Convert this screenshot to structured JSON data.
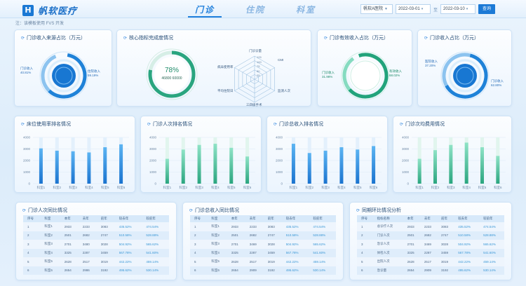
{
  "header": {
    "logo_mark": "H",
    "logo_text": "帆软医疗",
    "tabs": [
      {
        "label": "门诊",
        "active": true
      },
      {
        "label": "住院",
        "active": false
      },
      {
        "label": "科室",
        "active": false
      }
    ],
    "filters": {
      "org": "帆软A医院",
      "date_start": "2022-03-01",
      "date_end": "2022-03-10",
      "separator": "至",
      "query_label": "查询"
    }
  },
  "note": "注：该模板使用 FVS 开发",
  "row1": {
    "source": {
      "title": "门诊收入来源占比（万元）",
      "left_label": "门诊收入",
      "left_value": "40.81%",
      "right_label": "住院收入",
      "right_value": "59.19%"
    },
    "core": {
      "title": "核心指标完成度情况",
      "percent": "78%",
      "subtitle": "46800 60000",
      "radar_axes": [
        "门诊诊量",
        "CMI",
        "监测人次",
        "三四级手术",
        "平均住院日",
        "病床使用率"
      ],
      "radar_ticks": [
        "125",
        "100",
        "75",
        "50",
        "25"
      ]
    },
    "effective": {
      "title": "门诊有效收入占比（万元）",
      "left_label": "门诊收入",
      "left_value": "31.98%",
      "right_label": "有效收入",
      "right_value": "68.02%"
    },
    "share": {
      "title": "门诊收入占比（万元）",
      "left_label": "医院收入",
      "left_value": "37.20%",
      "right_label": "门诊收入",
      "right_value": "62.80%"
    }
  },
  "chart_data": [
    {
      "type": "bar",
      "title": "床位使用率排名情况",
      "categories": [
        "科室1",
        "科室2",
        "科室3",
        "科室4",
        "科室5",
        "科室6"
      ],
      "values": [
        3050,
        2850,
        2800,
        2700,
        3150,
        3400
      ],
      "ylim": [
        0,
        4000
      ],
      "yticks": [
        "4000",
        "3000",
        "2000",
        "1000",
        "0"
      ],
      "color": "blue"
    },
    {
      "type": "bar",
      "title": "门诊人次排名情况",
      "categories": [
        "科室1",
        "科室2",
        "科室3",
        "科室4",
        "科室5",
        "科室6"
      ],
      "values": [
        2150,
        2950,
        3350,
        3450,
        3100,
        2350
      ],
      "ylim": [
        0,
        4000
      ],
      "yticks": [
        "4000",
        "3000",
        "2000",
        "1000",
        "0"
      ],
      "color": "green"
    },
    {
      "type": "bar",
      "title": "门诊总收入排名情况",
      "categories": [
        "科室1",
        "科室2",
        "科室3",
        "科室4",
        "科室5",
        "科室6"
      ],
      "values": [
        3450,
        2650,
        2850,
        3150,
        2950,
        3250
      ],
      "ylim": [
        0,
        4000
      ],
      "yticks": [
        "4000",
        "3000",
        "2000",
        "1000",
        "0"
      ],
      "color": "blue"
    },
    {
      "type": "bar",
      "title": "门诊次均费用情况",
      "categories": [
        "科室1",
        "科室2",
        "科室3",
        "科室4",
        "科室5",
        "科室6"
      ],
      "values": [
        2150,
        2900,
        3350,
        3550,
        3150,
        2400
      ],
      "ylim": [
        0,
        4000
      ],
      "yticks": [
        "4000",
        "3000",
        "2000",
        "1000",
        "0"
      ],
      "color": "green"
    }
  ],
  "tables": [
    {
      "title": "门诊人次同比情况",
      "headers": [
        "序号",
        "科室",
        "本年",
        "去年",
        "前年",
        "较去年",
        "较前年"
      ],
      "rows": [
        [
          "1",
          "科室1",
          "2933",
          "2233",
          "3083",
          "435.52%",
          "474.54%"
        ],
        [
          "2",
          "科室2",
          "2501",
          "2682",
          "2747",
          "510.58%",
          "528.88%"
        ],
        [
          "3",
          "科室3",
          "2701",
          "3480",
          "3028",
          "504.92%",
          "565.62%"
        ],
        [
          "4",
          "科室4",
          "3325",
          "2287",
          "3459",
          "567.78%",
          "541.60%"
        ],
        [
          "5",
          "科室5",
          "2628",
          "2517",
          "3019",
          "442.22%",
          "459.14%"
        ],
        [
          "6",
          "科室6",
          "2654",
          "2986",
          "3192",
          "495.62%",
          "530.14%"
        ]
      ]
    },
    {
      "title": "门诊总收入同比情况",
      "headers": [
        "序号",
        "科室",
        "本年",
        "去年",
        "前年",
        "较去年",
        "较前年"
      ],
      "rows": [
        [
          "1",
          "科室1",
          "2933",
          "2233",
          "3083",
          "435.52%",
          "474.54%"
        ],
        [
          "2",
          "科室2",
          "2501",
          "2682",
          "2747",
          "510.58%",
          "528.88%"
        ],
        [
          "3",
          "科室3",
          "2701",
          "3469",
          "3028",
          "504.92%",
          "565.62%"
        ],
        [
          "4",
          "科室4",
          "3325",
          "2287",
          "3459",
          "567.78%",
          "541.60%"
        ],
        [
          "5",
          "科室5",
          "2628",
          "2517",
          "3019",
          "442.22%",
          "459.14%"
        ],
        [
          "6",
          "科室6",
          "2654",
          "2909",
          "3192",
          "495.62%",
          "530.14%"
        ]
      ]
    },
    {
      "title": "同期环比情况分析",
      "headers": [
        "序号",
        "指标名称",
        "本年",
        "去年",
        "前年",
        "较去年",
        "较前年"
      ],
      "rows": [
        [
          "1",
          "总诊疗人次",
          "2933",
          "2233",
          "3083",
          "435.52%",
          "474.54%"
        ],
        [
          "2",
          "门诊人次",
          "2501",
          "2682",
          "2747",
          "510.58%",
          "528.88%"
        ],
        [
          "3",
          "急诊人次",
          "2701",
          "3469",
          "3028",
          "504.92%",
          "565.62%"
        ],
        [
          "4",
          "体检人次",
          "3325",
          "2287",
          "3459",
          "567.78%",
          "541.60%"
        ],
        [
          "5",
          "出院人次",
          "2628",
          "2517",
          "3019",
          "442.22%",
          "459.14%"
        ],
        [
          "6",
          "急诊量",
          "2654",
          "2909",
          "3192",
          "495.62%",
          "530.14%"
        ]
      ]
    }
  ]
}
